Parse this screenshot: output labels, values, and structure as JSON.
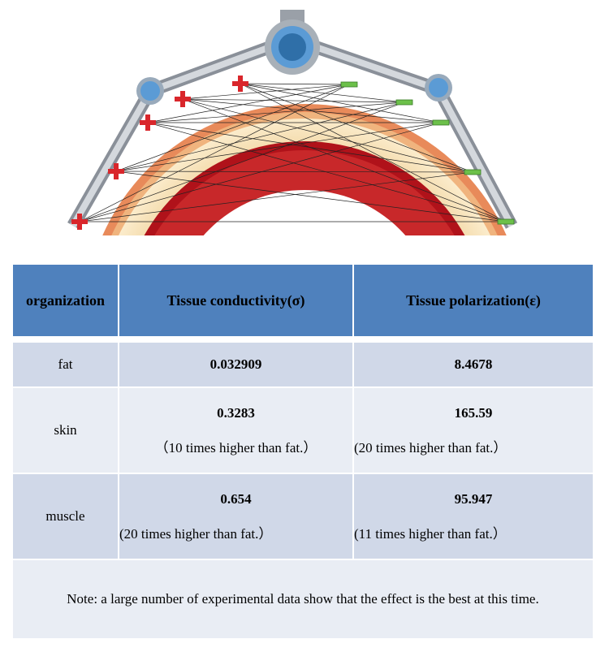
{
  "table": {
    "header": [
      "organization",
      "Tissue conductivity(σ)",
      "Tissue polarization(ε)"
    ],
    "rows": [
      {
        "label": "fat",
        "conductivity": {
          "value": "0.032909"
        },
        "polarization": {
          "value": "8.4678"
        }
      },
      {
        "label": "skin",
        "conductivity": {
          "value": "0.3283",
          "note": "（10 times higher than fat.）"
        },
        "polarization": {
          "value": "165.59",
          "note": "(20 times higher than fat.）"
        }
      },
      {
        "label": "muscle",
        "conductivity": {
          "value": "0.654",
          "note": "(20 times higher than fat.）"
        },
        "polarization": {
          "value": "95.947",
          "note": "(11 times higher than fat.）"
        }
      }
    ],
    "note": "Note: a large number of experimental data show that the effect is the best at this time."
  }
}
